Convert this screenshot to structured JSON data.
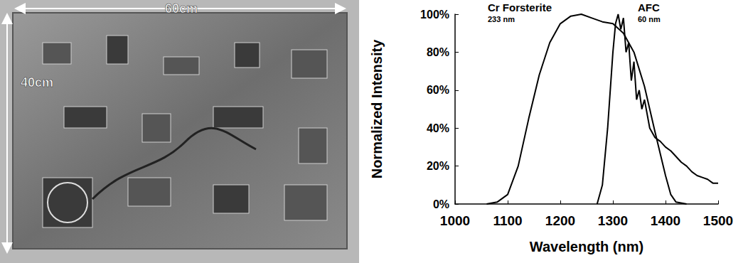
{
  "photo": {
    "width_label": "60cm",
    "height_label": "40cm"
  },
  "chart_data": {
    "type": "line",
    "x_label": "Wavelength (nm)",
    "y_label": "Normalized Intensity",
    "xlim": [
      1000,
      1500
    ],
    "xticks": [
      1000,
      1100,
      1200,
      1300,
      1400,
      1500
    ],
    "ylim": [
      0,
      100
    ],
    "yticks": [
      {
        "value": 0,
        "label": "0%"
      },
      {
        "value": 20,
        "label": "20%"
      },
      {
        "value": 40,
        "label": "40%"
      },
      {
        "value": 60,
        "label": "60%"
      },
      {
        "value": 80,
        "label": "80%"
      },
      {
        "value": 100,
        "label": "100%"
      }
    ],
    "grid": false,
    "series": [
      {
        "name": "Cr Forsterite",
        "annotation": "233 nm",
        "color": "#000000",
        "x": [
          1060,
          1080,
          1100,
          1120,
          1140,
          1160,
          1180,
          1200,
          1220,
          1240,
          1260,
          1280,
          1300,
          1320,
          1340,
          1360,
          1370,
          1380,
          1400,
          1410,
          1420,
          1440
        ],
        "values": [
          0,
          1,
          5,
          20,
          45,
          68,
          85,
          95,
          99,
          100,
          98,
          96,
          95,
          90,
          80,
          62,
          50,
          38,
          15,
          5,
          1,
          0
        ]
      },
      {
        "name": "AFC",
        "annotation": "60 nm",
        "color": "#000000",
        "x": [
          1270,
          1280,
          1290,
          1300,
          1305,
          1310,
          1315,
          1320,
          1325,
          1330,
          1335,
          1340,
          1345,
          1350,
          1355,
          1360,
          1370,
          1380,
          1390,
          1400,
          1410,
          1420,
          1430,
          1440,
          1450,
          1460,
          1470,
          1480,
          1490,
          1500
        ],
        "values": [
          0,
          10,
          40,
          80,
          95,
          100,
          92,
          98,
          80,
          85,
          65,
          75,
          55,
          60,
          50,
          55,
          40,
          35,
          33,
          30,
          28,
          25,
          22,
          20,
          17,
          15,
          14,
          13,
          11,
          11
        ]
      }
    ]
  }
}
